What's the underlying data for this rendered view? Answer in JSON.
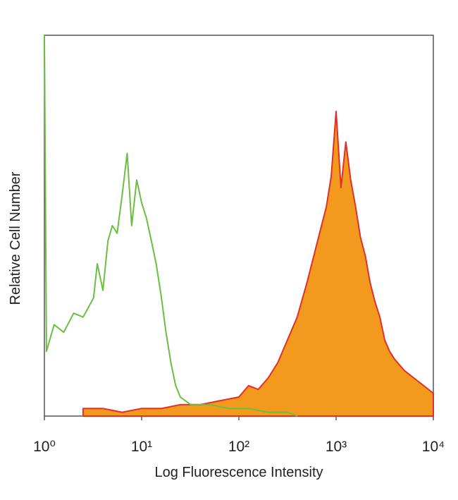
{
  "chart_data": {
    "type": "histogram-line",
    "xlabel": "Log Fluorescence Intensity",
    "ylabel": "Relative Cell Number",
    "xscale": "log",
    "xlim": [
      1,
      10000
    ],
    "ylim": [
      0,
      100
    ],
    "xticks": [
      {
        "value": 1,
        "label": "10⁰"
      },
      {
        "value": 10,
        "label": "10¹"
      },
      {
        "value": 100,
        "label": "10²"
      },
      {
        "value": 1000,
        "label": "10³"
      },
      {
        "value": 10000,
        "label": "10⁴"
      }
    ],
    "series": [
      {
        "color": "#e0302a",
        "fill_color": "#f39a1e",
        "fill": true,
        "x": [
          2.5,
          4,
          6.3,
          10,
          16,
          25,
          40,
          63,
          100,
          126,
          158,
          200,
          251,
          316,
          398,
          501,
          631,
          794,
          891,
          1000,
          1122,
          1259,
          1413,
          1585,
          1778,
          2000,
          2239,
          2512,
          2818,
          3162,
          3548,
          3981,
          5012,
          6310,
          7943,
          10000
        ],
        "values": [
          2,
          2,
          1,
          2,
          2,
          3,
          3,
          4,
          5,
          8,
          7,
          10,
          14,
          20,
          26,
          35,
          45,
          55,
          63,
          80,
          60,
          72,
          62,
          55,
          47,
          42,
          35,
          30,
          26,
          20,
          17,
          15,
          12,
          10,
          8,
          6
        ]
      },
      {
        "color": "#6abf3f",
        "fill": false,
        "x": [
          1,
          1.05,
          1.26,
          1.58,
          2,
          2.5,
          3.2,
          3.5,
          4,
          4.5,
          5,
          5.6,
          6.3,
          7.1,
          7.9,
          8.9,
          10,
          11.2,
          12.6,
          14.1,
          15.8,
          17.8,
          20,
          22.4,
          25,
          32,
          50,
          79,
          126,
          200,
          316,
          400
        ],
        "values": [
          100,
          17,
          24,
          22,
          27,
          26,
          31,
          40,
          33,
          46,
          50,
          48,
          58,
          69,
          50,
          62,
          56,
          52,
          46,
          40,
          32,
          22,
          14,
          8,
          5,
          3,
          3,
          2,
          2,
          1,
          1,
          0
        ]
      }
    ]
  }
}
